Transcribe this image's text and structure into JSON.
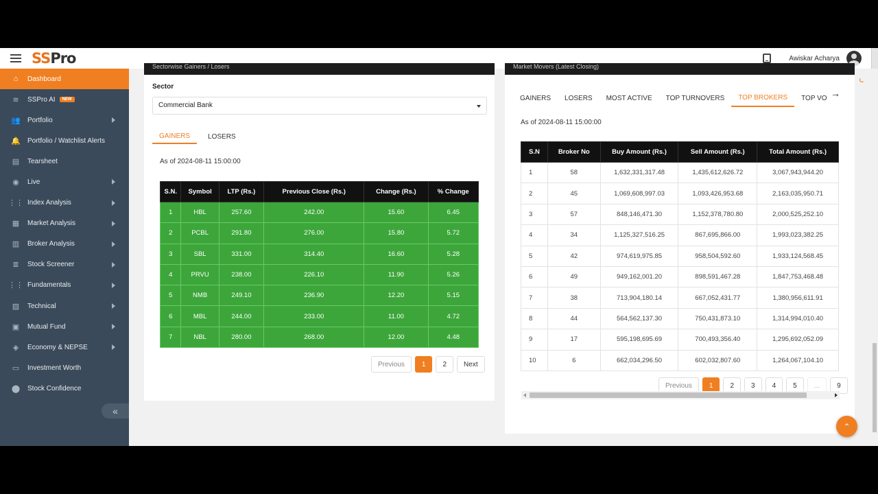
{
  "header": {
    "logo_ss": "SS",
    "logo_pro": "Pro",
    "user_name": "Awiskar Acharya"
  },
  "sidebar": {
    "items": [
      {
        "label": "Dashboard",
        "icon": "home-icon",
        "active": true,
        "arrow": false
      },
      {
        "label": "SSPro AI",
        "icon": "ai-icon",
        "badge": "NEW",
        "arrow": false
      },
      {
        "label": "Portfolio",
        "icon": "people-icon",
        "arrow": true
      },
      {
        "label": "Portfolio / Watchlist Alerts",
        "icon": "bell-icon",
        "arrow": false
      },
      {
        "label": "Tearsheet",
        "icon": "sheet-icon",
        "arrow": false
      },
      {
        "label": "Live",
        "icon": "globe-icon",
        "arrow": true
      },
      {
        "label": "Index Analysis",
        "icon": "grid-icon",
        "arrow": true
      },
      {
        "label": "Market Analysis",
        "icon": "calendar-icon",
        "arrow": true
      },
      {
        "label": "Broker Analysis",
        "icon": "broker-icon",
        "arrow": true
      },
      {
        "label": "Stock Screener",
        "icon": "layers-icon",
        "arrow": true
      },
      {
        "label": "Fundamentals",
        "icon": "grid-icon",
        "arrow": true
      },
      {
        "label": "Technical",
        "icon": "chart-icon",
        "arrow": true
      },
      {
        "label": "Mutual Fund",
        "icon": "fund-icon",
        "arrow": true
      },
      {
        "label": "Economy & NEPSE",
        "icon": "economy-icon",
        "arrow": true
      },
      {
        "label": "Investment Worth",
        "icon": "investment-icon",
        "arrow": false
      },
      {
        "label": "Stock Confidence",
        "icon": "location-icon",
        "arrow": false
      }
    ]
  },
  "left_card": {
    "title": "Sectorwise Gainers / Losers",
    "sector_label": "Sector",
    "sector_value": "Commercial Bank",
    "tabs": [
      "GAINERS",
      "LOSERS"
    ],
    "as_of": "As of 2024-08-11 15:00:00",
    "columns": [
      "S.N.",
      "Symbol",
      "LTP (Rs.)",
      "Previous Close (Rs.)",
      "Change (Rs.)",
      "% Change"
    ],
    "rows": [
      [
        "1",
        "HBL",
        "257.60",
        "242.00",
        "15.60",
        "6.45"
      ],
      [
        "2",
        "PCBL",
        "291.80",
        "276.00",
        "15.80",
        "5.72"
      ],
      [
        "3",
        "SBL",
        "331.00",
        "314.40",
        "16.60",
        "5.28"
      ],
      [
        "4",
        "PRVU",
        "238.00",
        "226.10",
        "11.90",
        "5.26"
      ],
      [
        "5",
        "NMB",
        "249.10",
        "236.90",
        "12.20",
        "5.15"
      ],
      [
        "6",
        "MBL",
        "244.00",
        "233.00",
        "11.00",
        "4.72"
      ],
      [
        "7",
        "NBL",
        "280.00",
        "268.00",
        "12.00",
        "4.48"
      ]
    ],
    "pager": {
      "previous": "Previous",
      "pages": [
        "1",
        "2"
      ],
      "next": "Next"
    }
  },
  "right_card": {
    "title": "Market Movers (Latest Closing)",
    "tabs": [
      "GAINERS",
      "LOSERS",
      "MOST ACTIVE",
      "TOP TURNOVERS",
      "TOP BROKERS",
      "TOP VOLU"
    ],
    "active_tab": "TOP BROKERS",
    "as_of": "As of 2024-08-11 15:00:00",
    "columns": [
      "S.N",
      "Broker No",
      "Buy Amount (Rs.)",
      "Sell Amount (Rs.)",
      "Total Amount (Rs.)"
    ],
    "rows": [
      [
        "1",
        "58",
        "1,632,331,317.48",
        "1,435,612,626.72",
        "3,067,943,944.20"
      ],
      [
        "2",
        "45",
        "1,069,608,997.03",
        "1,093,426,953.68",
        "2,163,035,950.71"
      ],
      [
        "3",
        "57",
        "848,146,471.30",
        "1,152,378,780.80",
        "2,000,525,252.10"
      ],
      [
        "4",
        "34",
        "1,125,327,516.25",
        "867,695,866.00",
        "1,993,023,382.25"
      ],
      [
        "5",
        "42",
        "974,619,975.85",
        "958,504,592.60",
        "1,933,124,568.45"
      ],
      [
        "6",
        "49",
        "949,162,001.20",
        "898,591,467.28",
        "1,847,753,468.48"
      ],
      [
        "7",
        "38",
        "713,904,180.14",
        "667,052,431.77",
        "1,380,956,611.91"
      ],
      [
        "8",
        "44",
        "564,562,137.30",
        "750,431,873.10",
        "1,314,994,010.40"
      ],
      [
        "9",
        "17",
        "595,198,695.69",
        "700,493,356.40",
        "1,295,692,052.09"
      ],
      [
        "10",
        "6",
        "662,034,296.50",
        "602,032,807.60",
        "1,264,067,104.10"
      ]
    ],
    "pager": {
      "previous": "Previous",
      "pages": [
        "1",
        "2",
        "3",
        "4",
        "5",
        "...",
        "9"
      ]
    }
  },
  "colors": {
    "accent": "#ef7f21",
    "sidebar_bg": "#3b4a5a",
    "gain_green": "#3ca63a",
    "header_dark": "#111111"
  }
}
